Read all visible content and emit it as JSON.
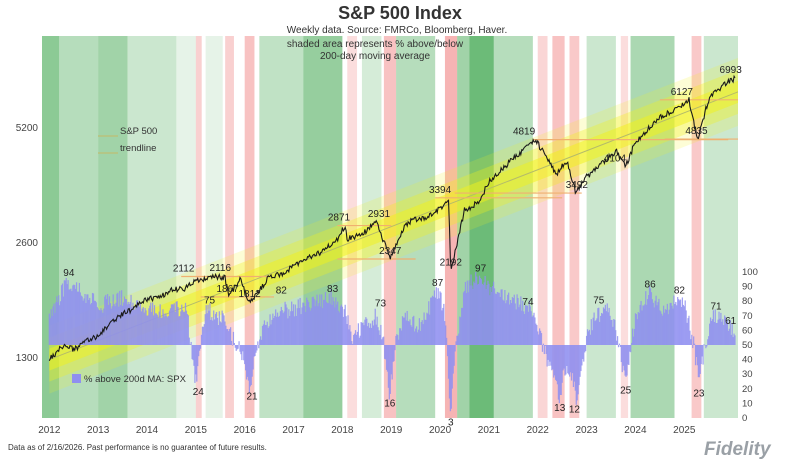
{
  "title": "S&P 500 Index",
  "subtitle": "Weekly data.  Source: FMRCo, Bloomberg, Haver.",
  "note_line1": "shaded area represents % above/below",
  "note_line2": "200-day moving average",
  "footnote": "Data as of 2/16/2026. Past performance is no guarantee of future results.",
  "brand": "Fidelity",
  "colors": {
    "price": "#1a1a1a",
    "pct_above": "#8f8ff0",
    "trend_band": "#f2f21a",
    "level_line": "#f0b070",
    "bullish_shade": "#2e9e3e",
    "bearish_shade": "#ef7777"
  },
  "chart_data": {
    "type": "line",
    "x_range": [
      2011.85,
      2026.1
    ],
    "x_ticks": [
      "2012",
      "2013",
      "2014",
      "2015",
      "2016",
      "2017",
      "2018",
      "2019",
      "2020",
      "2021",
      "2022",
      "2023",
      "2024",
      "2025"
    ],
    "y_scale": "log",
    "ylim": [
      900,
      9000
    ],
    "y_ticks": [
      "1300",
      "2600",
      "5200"
    ],
    "secondary_ylim": [
      0,
      100
    ],
    "secondary_y_ticks": [
      "0",
      "10",
      "20",
      "30",
      "40",
      "50",
      "60",
      "70",
      "80",
      "90",
      "100"
    ],
    "series": [
      {
        "name": "",
        "x": [
          2012.0,
          2012.3,
          2012.5,
          2012.8,
          2013.0,
          2013.3,
          2013.5,
          2013.8,
          2014.0,
          2014.3,
          2014.5,
          2014.75,
          2015.0,
          2015.3,
          2015.6,
          2015.67,
          2015.9,
          2016.1,
          2016.5,
          2016.8,
          2017.0,
          2017.5,
          2017.9,
          2018.05,
          2018.1,
          2018.4,
          2018.7,
          2018.98,
          2019.3,
          2019.5,
          2019.8,
          2020.1,
          2020.17,
          2020.22,
          2020.5,
          2020.8,
          2021.0,
          2021.5,
          2021.95,
          2022.4,
          2022.45,
          2022.6,
          2022.78,
          2023.0,
          2023.3,
          2023.6,
          2023.8,
          2024.0,
          2024.3,
          2024.5,
          2024.8,
          2025.1,
          2025.27,
          2025.5,
          2025.8,
          2026.05
        ],
        "values": [
          1280,
          1400,
          1360,
          1440,
          1480,
          1620,
          1680,
          1770,
          1840,
          1880,
          1950,
          1960,
          2050,
          2110,
          2100,
          1867,
          2080,
          1812,
          2100,
          2150,
          2270,
          2420,
          2650,
          2871,
          2650,
          2720,
          2931,
          2347,
          2900,
          2980,
          3050,
          3250,
          3394,
          2192,
          3150,
          3300,
          3750,
          4300,
          4819,
          3900,
          4050,
          4200,
          3492,
          3850,
          4150,
          4500,
          4104,
          4750,
          5200,
          5500,
          5800,
          6127,
          4835,
          6150,
          6700,
          6993
        ]
      },
      {
        "name": "% above 200d MA: SPX",
        "secondary_axis": true,
        "x": [
          2012.0,
          2012.2,
          2012.4,
          2012.6,
          2012.9,
          2013.1,
          2013.5,
          2014.0,
          2014.5,
          2014.8,
          2015.0,
          2015.2,
          2015.4,
          2015.6,
          2015.7,
          2015.9,
          2016.1,
          2016.3,
          2016.6,
          2017.0,
          2017.5,
          2017.8,
          2018.05,
          2018.2,
          2018.4,
          2018.7,
          2018.85,
          2018.97,
          2019.1,
          2019.3,
          2019.6,
          2019.95,
          2020.1,
          2020.15,
          2020.22,
          2020.3,
          2020.5,
          2020.8,
          2021.0,
          2021.5,
          2021.9,
          2022.1,
          2022.3,
          2022.45,
          2022.55,
          2022.7,
          2022.8,
          2023.0,
          2023.2,
          2023.4,
          2023.6,
          2023.8,
          2024.0,
          2024.3,
          2024.6,
          2024.8,
          2025.0,
          2025.2,
          2025.3,
          2025.4,
          2025.6,
          2025.8,
          2026.0
        ],
        "values": [
          70,
          82,
          94,
          88,
          80,
          78,
          82,
          76,
          72,
          78,
          24,
          75,
          70,
          68,
          58,
          48,
          21,
          55,
          72,
          75,
          80,
          83,
          73,
          55,
          62,
          70,
          50,
          16,
          55,
          70,
          62,
          87,
          72,
          40,
          3,
          40,
          90,
          97,
          90,
          80,
          74,
          50,
          30,
          13,
          35,
          30,
          12,
          55,
          70,
          75,
          60,
          25,
          70,
          86,
          70,
          82,
          78,
          50,
          23,
          45,
          71,
          70,
          61
        ]
      }
    ],
    "legend_entries": [
      "% above 200d MA: SPX"
    ],
    "trend_label": [
      "S&P 500",
      "trendline"
    ],
    "annotations": [
      {
        "text": "6993",
        "x": 2025.95,
        "y": 6993
      },
      {
        "text": "6127",
        "x": 2024.95,
        "y": 6127
      },
      {
        "text": "4819",
        "x": 2021.72,
        "y": 4819
      },
      {
        "text": "4835",
        "x": 2025.25,
        "y": 4835
      },
      {
        "text": "4104",
        "x": 2023.58,
        "y": 4104
      },
      {
        "text": "3492",
        "x": 2022.8,
        "y": 3492
      },
      {
        "text": "3394",
        "x": 2020.0,
        "y": 3394
      },
      {
        "text": "2931",
        "x": 2018.75,
        "y": 2931
      },
      {
        "text": "2871",
        "x": 2017.93,
        "y": 2871
      },
      {
        "text": "2347",
        "x": 2018.98,
        "y": 2347
      },
      {
        "text": "2192",
        "x": 2020.22,
        "y": 2192
      },
      {
        "text": "2112",
        "x": 2014.75,
        "y": 2112
      },
      {
        "text": "2116",
        "x": 2015.5,
        "y": 2116
      },
      {
        "text": "1867",
        "x": 2015.65,
        "y": 1867
      },
      {
        "text": "1812",
        "x": 2016.1,
        "y": 1812
      },
      {
        "text": "94",
        "x": 2012.4,
        "pct": 94
      },
      {
        "text": "75",
        "x": 2015.28,
        "pct": 75
      },
      {
        "text": "82",
        "x": 2016.75,
        "pct": 82
      },
      {
        "text": "83",
        "x": 2017.8,
        "pct": 83
      },
      {
        "text": "73",
        "x": 2018.78,
        "pct": 73
      },
      {
        "text": "87",
        "x": 2019.95,
        "pct": 87
      },
      {
        "text": "97",
        "x": 2020.83,
        "pct": 97
      },
      {
        "text": "74",
        "x": 2021.8,
        "pct": 74
      },
      {
        "text": "75",
        "x": 2023.25,
        "pct": 75
      },
      {
        "text": "86",
        "x": 2024.3,
        "pct": 86
      },
      {
        "text": "82",
        "x": 2024.9,
        "pct": 82
      },
      {
        "text": "71",
        "x": 2025.65,
        "pct": 71
      },
      {
        "text": "61",
        "x": 2025.95,
        "pct": 61
      },
      {
        "text": "24",
        "x": 2015.05,
        "pct": 24
      },
      {
        "text": "21",
        "x": 2016.15,
        "pct": 21
      },
      {
        "text": "16",
        "x": 2018.97,
        "pct": 16
      },
      {
        "text": "3",
        "x": 2020.22,
        "pct": 3
      },
      {
        "text": "13",
        "x": 2022.45,
        "pct": 13
      },
      {
        "text": "12",
        "x": 2022.75,
        "pct": 12
      },
      {
        "text": "25",
        "x": 2023.8,
        "pct": 25
      },
      {
        "text": "23",
        "x": 2025.3,
        "pct": 23
      }
    ],
    "level_lines": [
      {
        "y": 2112,
        "x0": 2014.7,
        "x1": 2016.5
      },
      {
        "y": 1867,
        "x0": 2015.1,
        "x1": 2016.6
      },
      {
        "y": 2871,
        "x0": 2017.9,
        "x1": 2019.0
      },
      {
        "y": 2347,
        "x0": 2017.9,
        "x1": 2019.5
      },
      {
        "y": 3394,
        "x0": 2019.9,
        "x1": 2022.5
      },
      {
        "y": 4819,
        "x0": 2021.9,
        "x1": 2025.9
      },
      {
        "y": 3492,
        "x0": 2020.3,
        "x1": 2022.9
      },
      {
        "y": 6127,
        "x0": 2024.5,
        "x1": 2026.2
      },
      {
        "y": 4835,
        "x0": 2024.6,
        "x1": 2026.2
      }
    ],
    "trend_band": {
      "start_x": 2012.0,
      "start_y": 1280,
      "end_x": 2026.2,
      "end_y": 6500
    },
    "shading": [
      {
        "x0": 2011.85,
        "x1": 2012.2,
        "tone": "bull",
        "s": 0.55
      },
      {
        "x0": 2012.2,
        "x1": 2013.0,
        "tone": "bull",
        "s": 0.35
      },
      {
        "x0": 2013.0,
        "x1": 2013.6,
        "tone": "bull",
        "s": 0.45
      },
      {
        "x0": 2013.6,
        "x1": 2014.6,
        "tone": "bull",
        "s": 0.25
      },
      {
        "x0": 2014.6,
        "x1": 2015.0,
        "tone": "bull",
        "s": 0.12
      },
      {
        "x0": 2015.0,
        "x1": 2015.12,
        "tone": "bear",
        "s": 0.35
      },
      {
        "x0": 2015.2,
        "x1": 2015.55,
        "tone": "bull",
        "s": 0.12
      },
      {
        "x0": 2015.6,
        "x1": 2015.78,
        "tone": "bear",
        "s": 0.35
      },
      {
        "x0": 2016.0,
        "x1": 2016.2,
        "tone": "bear",
        "s": 0.45
      },
      {
        "x0": 2016.3,
        "x1": 2017.2,
        "tone": "bull",
        "s": 0.3
      },
      {
        "x0": 2017.2,
        "x1": 2018.0,
        "tone": "bull",
        "s": 0.5
      },
      {
        "x0": 2018.1,
        "x1": 2018.3,
        "tone": "bear",
        "s": 0.25
      },
      {
        "x0": 2018.4,
        "x1": 2018.8,
        "tone": "bull",
        "s": 0.2
      },
      {
        "x0": 2018.85,
        "x1": 2019.1,
        "tone": "bear",
        "s": 0.45
      },
      {
        "x0": 2019.1,
        "x1": 2019.9,
        "tone": "bull",
        "s": 0.35
      },
      {
        "x0": 2020.1,
        "x1": 2020.35,
        "tone": "bear",
        "s": 0.55
      },
      {
        "x0": 2020.35,
        "x1": 2020.6,
        "tone": "bull",
        "s": 0.45
      },
      {
        "x0": 2020.6,
        "x1": 2021.1,
        "tone": "bull",
        "s": 0.7
      },
      {
        "x0": 2021.1,
        "x1": 2021.9,
        "tone": "bull",
        "s": 0.35
      },
      {
        "x0": 2022.0,
        "x1": 2022.2,
        "tone": "bear",
        "s": 0.3
      },
      {
        "x0": 2022.3,
        "x1": 2022.55,
        "tone": "bear",
        "s": 0.45
      },
      {
        "x0": 2022.65,
        "x1": 2022.85,
        "tone": "bear",
        "s": 0.4
      },
      {
        "x0": 2023.0,
        "x1": 2023.6,
        "tone": "bull",
        "s": 0.25
      },
      {
        "x0": 2023.7,
        "x1": 2023.85,
        "tone": "bear",
        "s": 0.25
      },
      {
        "x0": 2023.9,
        "x1": 2024.8,
        "tone": "bull",
        "s": 0.4
      },
      {
        "x0": 2025.15,
        "x1": 2025.35,
        "tone": "bear",
        "s": 0.4
      },
      {
        "x0": 2025.4,
        "x1": 2026.1,
        "tone": "bull",
        "s": 0.25
      }
    ]
  }
}
